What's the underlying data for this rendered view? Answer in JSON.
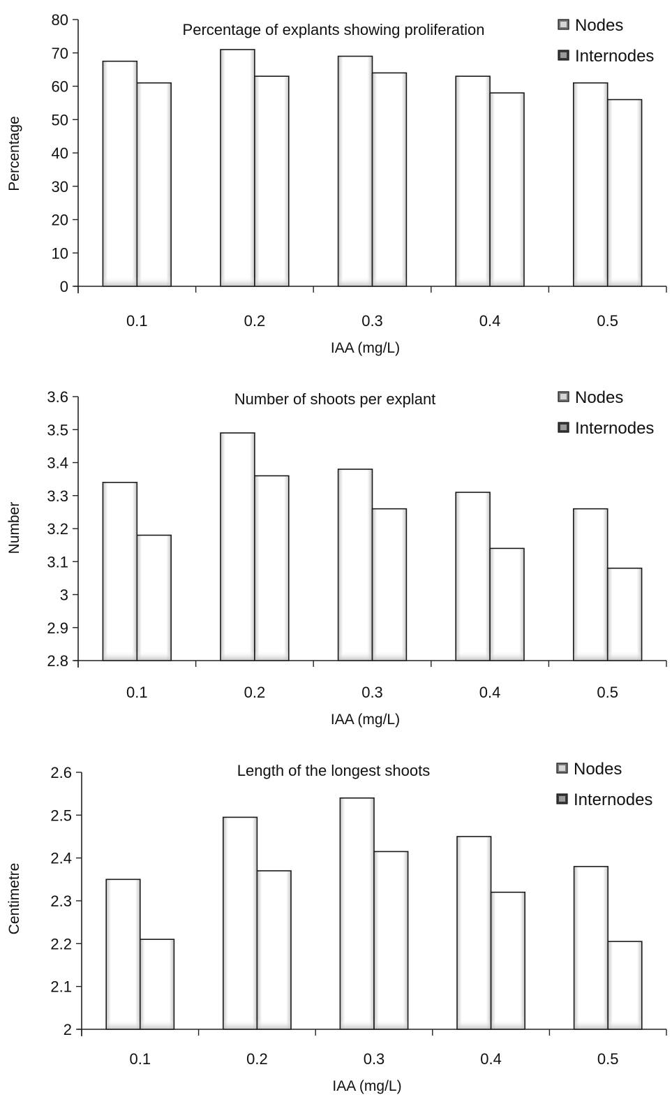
{
  "chart_data": [
    {
      "type": "bar",
      "title": "Percentage of explants showing proliferation",
      "xlabel": "IAA (mg/L)",
      "ylabel": "Percentage",
      "categories": [
        "0.1",
        "0.2",
        "0.3",
        "0.4",
        "0.5"
      ],
      "ylim": [
        0,
        80
      ],
      "yticks": [
        "0",
        "10",
        "20",
        "30",
        "40",
        "50",
        "60",
        "70",
        "80"
      ],
      "grid": false,
      "legend": "top-right",
      "series": [
        {
          "name": "Nodes",
          "values": [
            67.5,
            71,
            69,
            63,
            61
          ]
        },
        {
          "name": "Internodes",
          "values": [
            61,
            63,
            64,
            58,
            56
          ]
        }
      ]
    },
    {
      "type": "bar",
      "title": "Number of  shoots per explant",
      "xlabel": "IAA (mg/L)",
      "ylabel": "Number",
      "categories": [
        "0.1",
        "0.2",
        "0.3",
        "0.4",
        "0.5"
      ],
      "ylim": [
        2.8,
        3.6
      ],
      "yticks": [
        "2.8",
        "2.9",
        "3",
        "3.1",
        "3.2",
        "3.3",
        "3.4",
        "3.5",
        "3.6"
      ],
      "grid": false,
      "legend": "top-right",
      "series": [
        {
          "name": "Nodes",
          "values": [
            3.34,
            3.49,
            3.38,
            3.31,
            3.26
          ]
        },
        {
          "name": "Internodes",
          "values": [
            3.18,
            3.36,
            3.26,
            3.14,
            3.08
          ]
        }
      ]
    },
    {
      "type": "bar",
      "title": "Length of the longest shoots",
      "xlabel": "IAA (mg/L)",
      "ylabel": "Centimetre",
      "categories": [
        "0.1",
        "0.2",
        "0.3",
        "0.4",
        "0.5"
      ],
      "ylim": [
        2,
        2.6
      ],
      "yticks": [
        "2",
        "2.1",
        "2.2",
        "2.3",
        "2.4",
        "2.5",
        "2.6"
      ],
      "grid": false,
      "legend": "top-right",
      "series": [
        {
          "name": "Nodes",
          "values": [
            2.35,
            2.495,
            2.54,
            2.45,
            2.38
          ]
        },
        {
          "name": "Internodes",
          "values": [
            2.21,
            2.37,
            2.415,
            2.32,
            2.205
          ]
        }
      ]
    }
  ],
  "colors": {
    "bar_fill": "#ffffff",
    "bar_edge": "#1a1a1a",
    "bar_shade": "#c9c9c9",
    "axis": "#222222"
  }
}
